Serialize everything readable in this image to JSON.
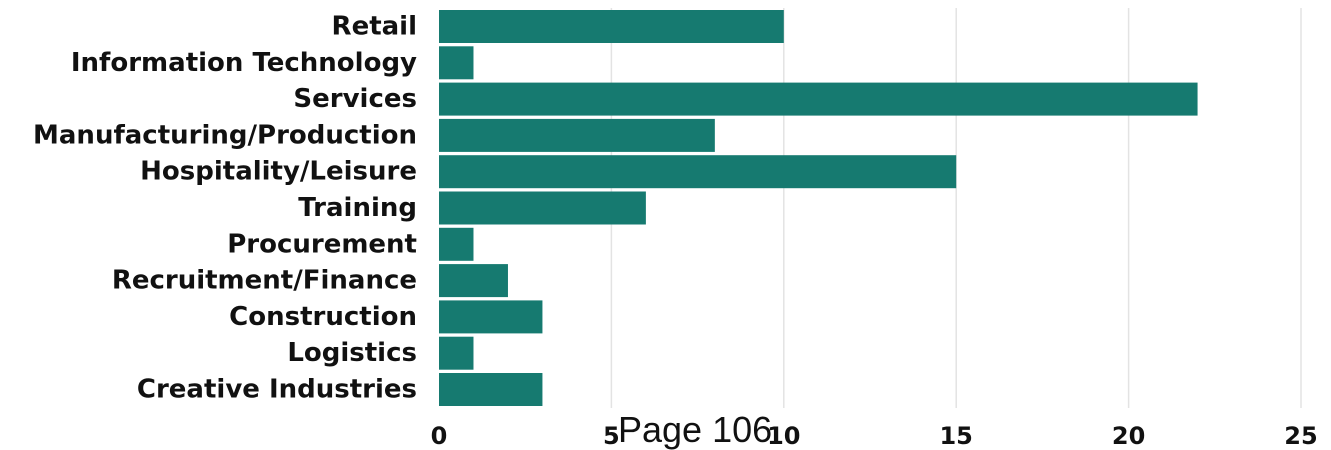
{
  "colors": {
    "bar": "#167a70",
    "grid": "#e3e3e3",
    "text": "#111111",
    "background": "#ffffff"
  },
  "footer": {
    "text": "Page 106"
  },
  "chart_data": {
    "type": "bar",
    "orientation": "horizontal",
    "categories": [
      "Retail",
      "Information Technology",
      "Services",
      "Manufacturing/Production",
      "Hospitality/Leisure",
      "Training",
      "Procurement",
      "Recruitment/Finance",
      "Construction",
      "Logistics",
      "Creative Industries"
    ],
    "values": [
      10,
      1,
      22,
      8,
      15,
      6,
      1,
      2,
      3,
      1,
      3
    ],
    "xlim": [
      0,
      25
    ],
    "x_ticks": [
      0,
      5,
      10,
      15,
      20,
      25
    ],
    "x_tick_labels": [
      "0",
      "5",
      "10",
      "15",
      "20",
      "25"
    ],
    "grid": "vertical",
    "legend": "none",
    "title": "",
    "xlabel": "",
    "ylabel": ""
  }
}
